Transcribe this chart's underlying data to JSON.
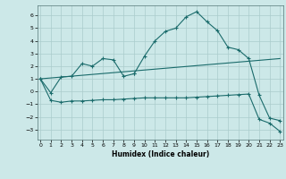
{
  "bg_color": "#cce8e8",
  "line_color": "#1a6b6b",
  "grid_color": "#aacccc",
  "xlabel": "Humidex (Indice chaleur)",
  "ylim": [
    -3.8,
    6.8
  ],
  "xlim": [
    -0.3,
    23.3
  ],
  "yticks": [
    -3,
    -2,
    -1,
    0,
    1,
    2,
    3,
    4,
    5,
    6
  ],
  "xticks": [
    0,
    1,
    2,
    3,
    4,
    5,
    6,
    7,
    8,
    9,
    10,
    11,
    12,
    13,
    14,
    15,
    16,
    17,
    18,
    19,
    20,
    21,
    22,
    23
  ],
  "series1_x": [
    0,
    1,
    2,
    3,
    4,
    5,
    6,
    7,
    8,
    9
  ],
  "series1_y": [
    1.0,
    -0.1,
    1.15,
    1.2,
    2.2,
    2.0,
    2.6,
    2.5,
    1.2,
    1.4
  ],
  "series2_x": [
    9,
    10,
    11,
    12,
    13,
    14,
    15,
    16,
    17,
    18,
    19,
    20,
    21,
    22,
    23
  ],
  "series2_y": [
    1.4,
    2.8,
    4.0,
    4.75,
    5.0,
    5.9,
    6.3,
    5.5,
    4.8,
    3.5,
    3.3,
    2.6,
    -0.3,
    -2.1,
    -2.3
  ],
  "series3_x": [
    0,
    1,
    2,
    3,
    4,
    5,
    6,
    7,
    8,
    9,
    10,
    11,
    12,
    13,
    14,
    15,
    16,
    17,
    18,
    19,
    20,
    21,
    22,
    23
  ],
  "series3_y": [
    1.0,
    -0.7,
    -0.85,
    -0.75,
    -0.75,
    -0.7,
    -0.65,
    -0.65,
    -0.6,
    -0.55,
    -0.5,
    -0.5,
    -0.5,
    -0.5,
    -0.5,
    -0.45,
    -0.4,
    -0.35,
    -0.3,
    -0.25,
    -0.2,
    -2.2,
    -2.5,
    -3.15
  ],
  "series4_x": [
    0,
    23
  ],
  "series4_y": [
    1.0,
    2.6
  ]
}
